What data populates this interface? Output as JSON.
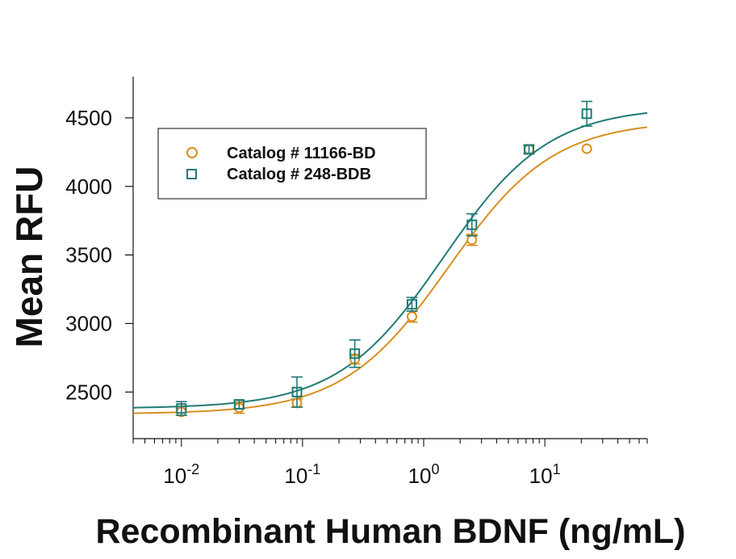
{
  "chart_data": {
    "type": "scatter",
    "xlabel": "Recombinant Human BDNF (ng/mL)",
    "ylabel": "Mean RFU",
    "x_scale": "log",
    "xlim": [
      0.004,
      70
    ],
    "ylim": [
      2160,
      4800
    ],
    "yticks": [
      2500,
      3000,
      3500,
      4000,
      4500
    ],
    "ytick_labels": [
      "2500",
      "3000",
      "3500",
      "4000",
      "4500"
    ],
    "xticks": [
      0.01,
      0.1,
      1,
      10
    ],
    "xtick_labels": [
      {
        "base": "10",
        "exp": "-2"
      },
      {
        "base": "10",
        "exp": "-1"
      },
      {
        "base": "10",
        "exp": "0"
      },
      {
        "base": "10",
        "exp": "1"
      }
    ],
    "legend_position": "top-left",
    "series": [
      {
        "name": "Catalog # 11166-BD",
        "marker": "circle",
        "color": "#D98E1F",
        "x": [
          0.01,
          0.03,
          0.09,
          0.27,
          0.8,
          2.5,
          7.4,
          22.2
        ],
        "y": [
          2355,
          2385,
          2420,
          2740,
          3050,
          3610,
          4270,
          4275
        ],
        "error": [
          25,
          40,
          30,
          35,
          40,
          40,
          30,
          0
        ],
        "fit": {
          "bottom": 2340,
          "top": 4480,
          "ec50": 1.6,
          "hill": 1.0
        }
      },
      {
        "name": "Catalog # 248-BDB",
        "marker": "square",
        "color": "#1F7A76",
        "x": [
          0.01,
          0.03,
          0.09,
          0.27,
          0.8,
          2.5,
          7.4,
          22.2
        ],
        "y": [
          2380,
          2410,
          2500,
          2780,
          3140,
          3720,
          4270,
          4530
        ],
        "error": [
          50,
          30,
          110,
          100,
          50,
          80,
          30,
          90
        ],
        "fit": {
          "bottom": 2380,
          "top": 4580,
          "ec50": 1.45,
          "hill": 1.0
        }
      }
    ]
  }
}
